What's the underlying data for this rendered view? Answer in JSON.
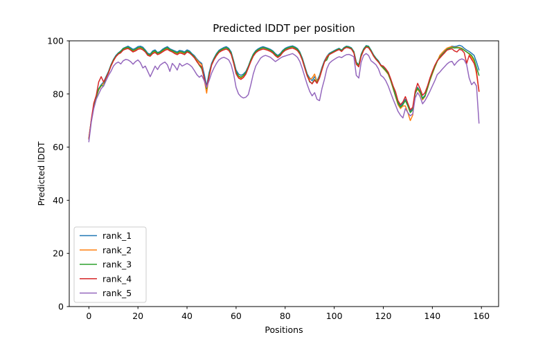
{
  "figure": {
    "title": "Predicted lDDT per position",
    "xlabel": "Positions",
    "ylabel": "Predicted lDDT"
  },
  "chart_data": {
    "type": "line",
    "title": "Predicted lDDT per position",
    "xlabel": "Positions",
    "ylabel": "Predicted lDDT",
    "xlim": [
      -8,
      167
    ],
    "ylim": [
      0,
      100
    ],
    "xticks": [
      0,
      20,
      40,
      60,
      80,
      100,
      120,
      140,
      160
    ],
    "yticks": [
      0,
      20,
      40,
      60,
      80,
      100
    ],
    "grid": false,
    "legend_position": "lower left",
    "x_is_index": true,
    "n_points": 160,
    "series": [
      {
        "name": "rank_1",
        "color": "#1f77b4",
        "values": [
          63,
          70,
          75.5,
          79,
          82,
          83.5,
          84.5,
          86.5,
          88.5,
          91,
          93,
          94.5,
          95.5,
          96.2,
          97.2,
          97.6,
          98,
          97.4,
          96.8,
          97.2,
          97.8,
          98,
          97.6,
          96.6,
          95.3,
          95,
          96.2,
          96.6,
          95.6,
          96,
          96.8,
          97.4,
          97.8,
          97,
          96.6,
          96.2,
          95.8,
          96.4,
          96.2,
          95.8,
          96.6,
          96.2,
          95.2,
          94.4,
          93.2,
          92.2,
          91.5,
          87.5,
          83,
          88,
          91.5,
          93.5,
          95.2,
          96.4,
          97,
          97.5,
          97.8,
          97.2,
          95.8,
          92.5,
          89,
          87.5,
          87,
          87.5,
          88.5,
          90.5,
          93,
          95,
          96.3,
          97,
          97.5,
          97.8,
          97.5,
          97.2,
          96.8,
          96.2,
          95.2,
          94.5,
          95.2,
          96.4,
          97.2,
          97.6,
          97.9,
          98.1,
          97.7,
          97.1,
          95.8,
          93.5,
          90.5,
          87.5,
          86,
          85,
          86.5,
          85,
          87,
          90,
          92.5,
          94.2,
          95.3,
          95.8,
          96.3,
          96.8,
          97.2,
          96.5,
          97.5,
          98,
          97.8,
          97.4,
          96,
          92,
          91,
          95,
          97,
          98.2,
          98,
          96.5,
          94.8,
          93.5,
          92.5,
          91,
          90,
          89,
          87.8,
          85.5,
          82.5,
          79.5,
          77,
          75.5,
          76.5,
          78,
          76,
          73.5,
          74.5,
          80,
          82.5,
          81,
          78.5,
          79.5,
          82.5,
          85.5,
          88,
          90.5,
          92.5,
          94,
          95,
          96,
          97,
          97.5,
          98,
          97.8,
          98,
          98.3,
          98,
          97.2,
          96.5,
          96,
          95.3,
          94.5,
          92,
          89
        ]
      },
      {
        "name": "rank_2",
        "color": "#ff7f0e",
        "values": [
          63.5,
          70,
          75.2,
          78.7,
          81.5,
          83,
          84,
          86,
          88,
          90.5,
          92.5,
          94,
          95.2,
          95.8,
          96.8,
          97.2,
          97.4,
          96.8,
          96.2,
          96.6,
          97.2,
          97.4,
          97,
          96.2,
          94.8,
          94.5,
          95.6,
          96,
          95.2,
          95.6,
          96.2,
          96.8,
          97.2,
          96.6,
          96.2,
          95.6,
          95.2,
          95.8,
          95.6,
          95.2,
          96,
          95.6,
          94.8,
          94,
          92.8,
          91.8,
          91,
          85.5,
          80.3,
          87,
          91,
          93,
          94.8,
          96,
          96.6,
          97,
          97.4,
          96.8,
          95.2,
          91.8,
          88,
          86.5,
          86,
          86.8,
          88,
          90,
          92.5,
          94.5,
          95.8,
          96.5,
          97,
          97.4,
          97.1,
          96.8,
          96.4,
          95.8,
          94.8,
          94,
          94.8,
          96,
          96.8,
          97.2,
          97.5,
          97.7,
          97.3,
          96.7,
          95.4,
          93,
          90,
          87,
          85.5,
          86,
          87.5,
          84.5,
          86.5,
          89.5,
          92,
          94,
          95,
          95.5,
          96,
          96.5,
          96.9,
          96.2,
          97.2,
          97.7,
          97.5,
          97.1,
          95.6,
          91.5,
          90.5,
          94.5,
          96.7,
          97.9,
          97.7,
          96.2,
          94.5,
          93.2,
          92.2,
          90.6,
          89.6,
          88.6,
          87.4,
          85,
          82,
          79,
          76,
          74.5,
          75.5,
          75.5,
          73,
          70,
          72,
          80.5,
          81.8,
          80.3,
          77.8,
          79,
          82,
          85,
          87.5,
          90,
          92.2,
          94.5,
          95.5,
          96.5,
          97.3,
          97.6,
          97.8,
          97.4,
          97.6,
          97.5,
          97.2,
          96.5,
          95.8,
          95,
          93.8,
          92.3,
          87.5,
          81
        ]
      },
      {
        "name": "rank_3",
        "color": "#2ca02c",
        "values": [
          63.2,
          70.2,
          75.3,
          78.8,
          81.8,
          83.2,
          83,
          86.2,
          88.2,
          90.8,
          92.8,
          94.2,
          95.3,
          96,
          97,
          97.4,
          97.6,
          97,
          96.4,
          96.8,
          97.4,
          97.6,
          97.2,
          96.2,
          95,
          94.7,
          95.8,
          96.2,
          95.3,
          95.7,
          96.4,
          97,
          97.4,
          96.7,
          96.3,
          95.8,
          95.4,
          96,
          95.8,
          95.4,
          96.2,
          95.8,
          94.9,
          93.9,
          92.3,
          90.8,
          89.5,
          86,
          82,
          87.2,
          91,
          93.2,
          94.9,
          96.1,
          96.7,
          97.1,
          97.4,
          96.9,
          95.4,
          92.1,
          88.3,
          86.8,
          86.3,
          87,
          88.1,
          90.2,
          92.8,
          94.8,
          96,
          96.7,
          97.1,
          97.4,
          97.2,
          96.9,
          96.5,
          95.9,
          94.9,
          94.2,
          94.9,
          96.1,
          96.9,
          97.3,
          97.6,
          97.8,
          97.4,
          96.8,
          95.5,
          93.1,
          90.1,
          87.1,
          84.5,
          84,
          85.5,
          84.2,
          86.3,
          89.3,
          92.2,
          92.8,
          95,
          95.6,
          96.1,
          96.6,
          97,
          96.3,
          97.3,
          97.8,
          97.6,
          97.2,
          95.8,
          91.8,
          90.8,
          94.8,
          96.8,
          98,
          97.8,
          96.3,
          94.6,
          93.3,
          92.3,
          90.8,
          89.8,
          88.8,
          87.6,
          85.2,
          82.2,
          79.2,
          76.5,
          75,
          76,
          77.5,
          75.5,
          73,
          74,
          80.2,
          82.2,
          80.8,
          78.2,
          79.2,
          82.2,
          85.2,
          87.8,
          90.2,
          92.3,
          93.8,
          94.8,
          95.8,
          96.8,
          97.2,
          97.5,
          97.3,
          97.4,
          97.3,
          97,
          96.4,
          95.8,
          95.2,
          94.5,
          93,
          90,
          87
        ]
      },
      {
        "name": "rank_4",
        "color": "#d62728",
        "values": [
          63,
          70.5,
          76.5,
          79.5,
          84.5,
          86.5,
          84.5,
          86,
          88,
          90.5,
          92.5,
          94,
          95,
          95.5,
          96.5,
          96.9,
          97.1,
          96.5,
          95.8,
          96.2,
          96.8,
          97,
          96.6,
          95.8,
          94.5,
          94.2,
          95.2,
          95.6,
          94.8,
          95.2,
          95.8,
          96.4,
          96.8,
          96.2,
          95.8,
          95.2,
          94.8,
          95.4,
          95.2,
          94.8,
          95.8,
          95.4,
          94.6,
          93.6,
          92.2,
          91,
          90.2,
          85.8,
          82.5,
          86.5,
          90.8,
          92.8,
          94.4,
          95.6,
          96.2,
          96.6,
          96.9,
          96.4,
          94.9,
          91.5,
          87.6,
          86,
          85.5,
          86.2,
          87.5,
          89.8,
          92.2,
          94.2,
          95.5,
          96.2,
          96.6,
          96.9,
          96.7,
          96.4,
          96,
          95.4,
          94.4,
          93.7,
          94.4,
          95.6,
          96.4,
          96.8,
          97.1,
          97.3,
          96.9,
          96.3,
          95,
          92.7,
          89.7,
          86.7,
          84.8,
          83.8,
          85.2,
          84,
          86,
          89,
          92,
          93.8,
          94.8,
          95.3,
          95.8,
          96.3,
          96.7,
          96,
          97,
          97.5,
          97.3,
          96.9,
          95.4,
          91.2,
          90.2,
          94.2,
          96.4,
          97.6,
          97.4,
          96,
          94.3,
          93,
          92,
          90.8,
          90.5,
          89.5,
          88.2,
          85.8,
          83,
          80.8,
          77.5,
          76,
          77,
          79,
          76.5,
          74,
          75,
          81,
          84,
          82,
          79.5,
          80.5,
          83,
          86,
          88.5,
          90.8,
          92.5,
          93.5,
          94.5,
          95.5,
          96.5,
          96.8,
          97,
          96.2,
          95.8,
          96.8,
          96.5,
          95.5,
          91.5,
          94.5,
          93,
          91.5,
          88.5,
          81
        ]
      },
      {
        "name": "rank_5",
        "color": "#9467bd",
        "values": [
          62,
          69.5,
          74.5,
          78,
          80,
          82,
          83,
          85,
          87,
          88.5,
          90.5,
          91.5,
          92,
          91.3,
          92.5,
          93,
          92.8,
          92.2,
          91.2,
          92.2,
          92.8,
          91.8,
          89.8,
          90.5,
          88.5,
          86.5,
          88.5,
          90.5,
          89.2,
          90.8,
          91.5,
          92,
          91,
          88.5,
          91.5,
          90.5,
          89,
          91.5,
          90.5,
          91,
          91.5,
          91,
          90.2,
          88.8,
          87.3,
          86.3,
          87,
          85,
          82.5,
          85,
          87.8,
          89.8,
          91.5,
          92.8,
          93.5,
          93.8,
          93.4,
          92.8,
          91,
          87.5,
          82.5,
          80,
          79,
          78.5,
          78.8,
          79.8,
          83.5,
          87.5,
          90.5,
          92,
          93.5,
          94.2,
          94.5,
          94.2,
          93.8,
          93,
          92.2,
          92.8,
          93.5,
          94,
          94.3,
          94.6,
          94.9,
          95.2,
          94.6,
          93.8,
          92.2,
          89.5,
          86.5,
          83.5,
          81,
          79.3,
          80.5,
          78,
          77.5,
          82,
          85.5,
          89.5,
          91.5,
          92.4,
          93,
          93.6,
          94,
          93.7,
          94.3,
          94.8,
          94.9,
          94.5,
          94,
          87,
          86,
          92,
          94.5,
          95.2,
          94.5,
          92.5,
          91.8,
          91,
          89.5,
          87,
          86.3,
          85,
          83,
          80.5,
          78,
          75.8,
          73.5,
          72,
          71,
          74.5,
          73,
          71.8,
          72.5,
          78.5,
          80.5,
          79,
          76.3,
          77.5,
          79.2,
          81,
          83,
          85,
          87.3,
          88.2,
          89.3,
          90.3,
          91.3,
          92,
          92.3,
          90.8,
          92,
          92.8,
          93.2,
          92.8,
          91,
          86,
          83.5,
          84.5,
          83,
          69
        ]
      }
    ],
    "legend": [
      "rank_1",
      "rank_2",
      "rank_3",
      "rank_4",
      "rank_5"
    ]
  }
}
